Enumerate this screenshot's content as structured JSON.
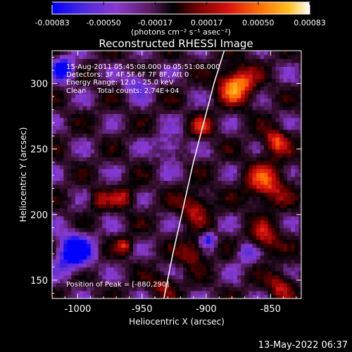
{
  "colorbar": {
    "ticks": [
      "-0.00083",
      "-0.00050",
      "-0.00017",
      "0.00017",
      "0.00050",
      "0.00083"
    ],
    "unit_label": "(photons cm⁻² s⁻¹ asec⁻²)"
  },
  "annotations": {
    "line1": "15-Aug-2011 05:45:08.000 to 05:51:08.000",
    "line2": "Detectors: 3F 4F 5F 6F 7F 8F, Att 0",
    "line3": "Energy Range: 12.0 - 25.0 keV",
    "line4": "Clean     Total counts: 2.74E+04",
    "peak": "Position of Peak = [-880,290]"
  },
  "timestamp": "13-May-2022 06:37",
  "chart_data": {
    "type": "heatmap",
    "title": "Reconstructed RHESSI Image",
    "xlabel": "Heliocentric X (arcsec)",
    "ylabel": "Heliocentric Y (arcsec)",
    "xlim": [
      -1020,
      -826
    ],
    "ylim": [
      136,
      325
    ],
    "x_ticks": [
      -1000,
      -950,
      -900,
      -850
    ],
    "y_ticks": [
      150,
      200,
      250,
      300
    ],
    "x_tick_labels": [
      "-1000",
      "-950",
      "-900",
      "-850"
    ],
    "y_tick_labels": [
      "150",
      "200",
      "250",
      "300"
    ],
    "color_range": [
      -0.00083,
      0.00083
    ],
    "colormap": [
      "#0000ff",
      "#5a2fd6",
      "#8a3ad0",
      "#3a1030",
      "#000000",
      "#700000",
      "#d81010",
      "#ff6a00",
      "#ffc020",
      "#ffffff"
    ],
    "peak_position": [
      -880,
      290
    ],
    "limb_curve": [
      [
        -933,
        136
      ],
      [
        -926,
        170
      ],
      [
        -918,
        205
      ],
      [
        -910,
        240
      ],
      [
        -902,
        270
      ],
      [
        -894,
        300
      ],
      [
        -886,
        325
      ]
    ],
    "bright_regions": [
      {
        "x": -878,
        "y": 298,
        "r": 14,
        "v": 0.00083
      },
      {
        "x": -848,
        "y": 255,
        "r": 10,
        "v": 0.0006
      },
      {
        "x": -855,
        "y": 222,
        "r": 16,
        "v": 0.0006
      },
      {
        "x": -856,
        "y": 180,
        "r": 12,
        "v": 0.0005
      },
      {
        "x": -844,
        "y": 145,
        "r": 10,
        "v": 0.0005
      },
      {
        "x": -912,
        "y": 170,
        "r": 10,
        "v": 0.0005
      },
      {
        "x": -910,
        "y": 205,
        "r": 12,
        "v": 0.0005
      },
      {
        "x": -905,
        "y": 265,
        "r": 9,
        "v": 0.0004
      },
      {
        "x": -965,
        "y": 212,
        "r": 9,
        "v": 0.0004
      },
      {
        "x": -985,
        "y": 210,
        "r": 8,
        "v": 0.0004
      },
      {
        "x": -935,
        "y": 145,
        "r": 9,
        "v": 0.0004
      },
      {
        "x": -965,
        "y": 175,
        "r": 6,
        "v": 0.0005
      }
    ],
    "dim_regions": [
      {
        "x": -1005,
        "y": 170,
        "r": 14,
        "v": -0.0008
      },
      {
        "x": -1012,
        "y": 310,
        "r": 10,
        "v": -0.0006
      },
      {
        "x": -955,
        "y": 300,
        "r": 10,
        "v": -0.0004
      },
      {
        "x": -900,
        "y": 180,
        "r": 6,
        "v": -0.0005
      },
      {
        "x": -870,
        "y": 170,
        "r": 9,
        "v": -0.0004
      },
      {
        "x": -930,
        "y": 250,
        "r": 10,
        "v": -0.0004
      }
    ]
  }
}
